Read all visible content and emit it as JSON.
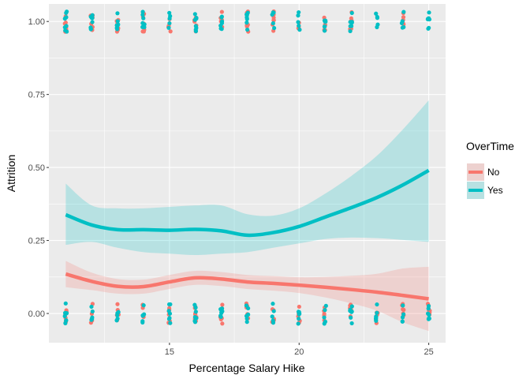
{
  "chart_data": {
    "type": "scatter",
    "title": "",
    "xlabel": "Percentage Salary Hike",
    "ylabel": "Attrition",
    "xlim": [
      10.35,
      25.65
    ],
    "ylim": [
      -0.1,
      1.06
    ],
    "x_ticks": [
      15,
      20,
      25
    ],
    "x_tick_labels": [
      "15",
      "20",
      "25"
    ],
    "y_ticks": [
      0,
      0.25,
      0.5,
      0.75,
      1
    ],
    "y_tick_labels": [
      "0.00",
      "0.25",
      "0.50",
      "0.75",
      "1.00"
    ],
    "grid": true,
    "legend": {
      "title": "OverTime",
      "placement": "right",
      "entries": [
        {
          "name": "No",
          "color": "#F8766D"
        },
        {
          "name": "Yes",
          "color": "#00BFC4"
        }
      ]
    },
    "points": {
      "No": {
        "y0": [
          11,
          12,
          13,
          14,
          15,
          16,
          17,
          18,
          19,
          20,
          21,
          22,
          23,
          24,
          25
        ],
        "y1": [
          11,
          12,
          13,
          14,
          15,
          16,
          17,
          18,
          19,
          20,
          21,
          22,
          24
        ]
      },
      "Yes": {
        "y0": [
          11,
          12,
          13,
          14,
          15,
          16,
          17,
          18,
          19,
          20,
          21,
          22,
          23,
          24,
          25
        ],
        "y1": [
          11,
          12,
          13,
          14,
          15,
          16,
          17,
          18,
          19,
          20,
          21,
          22,
          23,
          24,
          25
        ]
      }
    },
    "series": [
      {
        "name": "No",
        "color": "#F8766D",
        "x": [
          11,
          12,
          13,
          14,
          15,
          16,
          17,
          18,
          19,
          20,
          21,
          22,
          23,
          24,
          25
        ],
        "y": [
          0.135,
          0.11,
          0.093,
          0.092,
          0.108,
          0.122,
          0.118,
          0.108,
          0.103,
          0.097,
          0.09,
          0.082,
          0.073,
          0.062,
          0.05
        ],
        "ci_low": [
          0.09,
          0.08,
          0.068,
          0.068,
          0.084,
          0.098,
          0.094,
          0.084,
          0.078,
          0.07,
          0.055,
          0.035,
          0.01,
          -0.03,
          -0.06
        ],
        "ci_high": [
          0.18,
          0.14,
          0.118,
          0.116,
          0.132,
          0.146,
          0.142,
          0.132,
          0.128,
          0.124,
          0.125,
          0.129,
          0.136,
          0.154,
          0.16
        ]
      },
      {
        "name": "Yes",
        "color": "#00BFC4",
        "x": [
          11,
          12,
          13,
          14,
          15,
          16,
          17,
          18,
          19,
          20,
          21,
          22,
          23,
          24,
          25
        ],
        "y": [
          0.338,
          0.303,
          0.287,
          0.287,
          0.285,
          0.288,
          0.283,
          0.268,
          0.277,
          0.298,
          0.33,
          0.362,
          0.397,
          0.44,
          0.49
        ],
        "ci_low": [
          0.235,
          0.245,
          0.225,
          0.21,
          0.205,
          0.2,
          0.205,
          0.21,
          0.225,
          0.24,
          0.255,
          0.26,
          0.258,
          0.252,
          0.245
        ],
        "ci_high": [
          0.445,
          0.37,
          0.36,
          0.36,
          0.365,
          0.37,
          0.37,
          0.34,
          0.335,
          0.36,
          0.41,
          0.47,
          0.54,
          0.63,
          0.73
        ]
      }
    ]
  }
}
